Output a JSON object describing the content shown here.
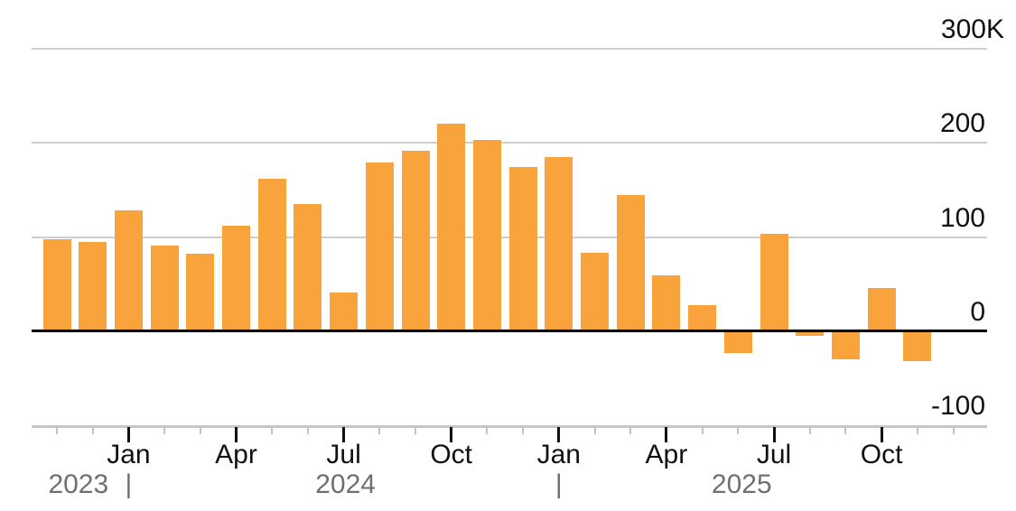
{
  "chart_data": {
    "type": "bar",
    "title": "",
    "unit": "thousands",
    "bar_color": "#F8A33B",
    "grid": true,
    "ylim": [
      -100,
      300
    ],
    "y_axis": {
      "side": "right",
      "ticks": [
        {
          "value": 300,
          "label": "300K"
        },
        {
          "value": 200,
          "label": "200"
        },
        {
          "value": 100,
          "label": "100"
        },
        {
          "value": 0,
          "label": "0"
        },
        {
          "value": -100,
          "label": "-100"
        }
      ]
    },
    "categories": [
      "Nov 2023",
      "Dec 2023",
      "Jan 2024",
      "Feb 2024",
      "Mar 2024",
      "Apr 2024",
      "May 2024",
      "Jun 2024",
      "Jul 2024",
      "Aug 2024",
      "Sep 2024",
      "Oct 2024",
      "Nov 2024",
      "Dec 2024",
      "Jan 2025",
      "Feb 2025",
      "Mar 2025",
      "Apr 2025",
      "May 2025",
      "Jun 2025",
      "Jul 2025",
      "Aug 2025",
      "Sep 2025",
      "Oct 2025",
      "Nov 2025"
    ],
    "values": [
      98,
      95,
      128,
      91,
      82,
      112,
      162,
      135,
      41,
      179,
      192,
      220,
      203,
      174,
      185,
      83,
      145,
      59,
      28,
      -23,
      103,
      -5,
      -30,
      46,
      -32
    ],
    "x_axis": {
      "month_labels": [
        {
          "index": 2,
          "label": "Jan"
        },
        {
          "index": 5,
          "label": "Apr"
        },
        {
          "index": 8,
          "label": "Jul"
        },
        {
          "index": 11,
          "label": "Oct"
        },
        {
          "index": 14,
          "label": "Jan"
        },
        {
          "index": 17,
          "label": "Apr"
        },
        {
          "index": 20,
          "label": "Jul"
        },
        {
          "index": 23,
          "label": "Oct"
        }
      ],
      "year_row": [
        {
          "index": 0.6,
          "label": "2023"
        },
        {
          "index": 2,
          "label": "|"
        },
        {
          "index": 8.05,
          "label": "2024"
        },
        {
          "index": 14,
          "label": "|"
        },
        {
          "index": 19.1,
          "label": "2025"
        }
      ]
    }
  }
}
